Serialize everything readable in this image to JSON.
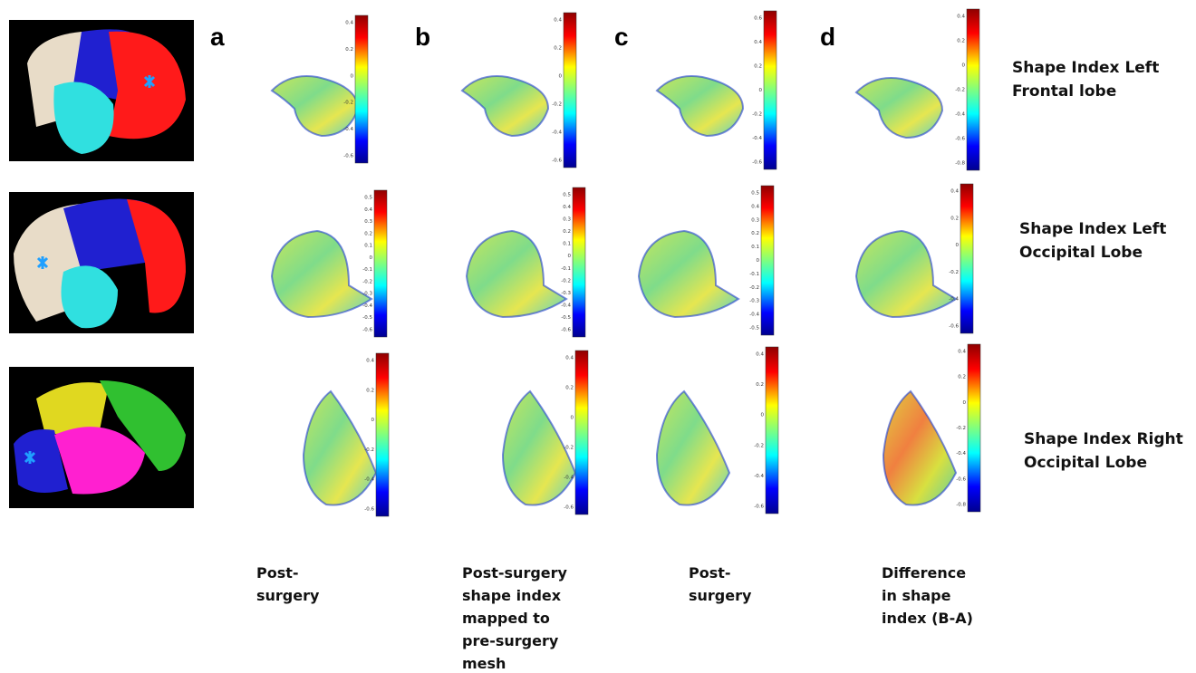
{
  "panel_letters": [
    "a",
    "b",
    "c",
    "d"
  ],
  "row_labels": [
    {
      "lines": [
        "Shape Index Left",
        "Frontal lobe"
      ]
    },
    {
      "lines": [
        "Shape Index Left",
        "Occipital Lobe"
      ]
    },
    {
      "lines": [
        "Shape Index Right",
        "Occipital Lobe"
      ]
    }
  ],
  "column_captions": [
    {
      "lines": [
        "Post-",
        "surgery"
      ]
    },
    {
      "lines": [
        "Post-surgery",
        "shape index",
        "mapped to",
        "pre-surgery",
        "mesh"
      ]
    },
    {
      "lines": [
        "Post-",
        "surgery"
      ]
    },
    {
      "lines": [
        "Difference",
        "in shape",
        "index (B-A)"
      ]
    }
  ],
  "colorbars": [
    [
      {
        "ticks": [
          "0.4",
          "0.2",
          "0",
          "-0.2",
          "-0.4",
          "-0.6"
        ]
      },
      {
        "ticks": [
          "0.4",
          "0.2",
          "0",
          "-0.2",
          "-0.4",
          "-0.6"
        ]
      },
      {
        "ticks": [
          "0.6",
          "0.4",
          "0.2",
          "0",
          "-0.2",
          "-0.4",
          "-0.6"
        ]
      },
      {
        "ticks": [
          "0.4",
          "0.2",
          "0",
          "-0.2",
          "-0.4",
          "-0.6",
          "-0.8"
        ]
      }
    ],
    [
      {
        "ticks": [
          "0.5",
          "0.4",
          "0.3",
          "0.2",
          "0.1",
          "0",
          "-0.1",
          "-0.2",
          "-0.3",
          "-0.4",
          "-0.5",
          "-0.6"
        ]
      },
      {
        "ticks": [
          "0.5",
          "0.4",
          "0.3",
          "0.2",
          "0.1",
          "0",
          "-0.1",
          "-0.2",
          "-0.3",
          "-0.4",
          "-0.5",
          "-0.6"
        ]
      },
      {
        "ticks": [
          "0.5",
          "0.4",
          "0.3",
          "0.2",
          "0.1",
          "0",
          "-0.1",
          "-0.2",
          "-0.3",
          "-0.4",
          "-0.5"
        ]
      },
      {
        "ticks": [
          "0.4",
          "0.2",
          "0",
          "-0.2",
          "-0.4",
          "-0.6"
        ]
      }
    ],
    [
      {
        "ticks": [
          "0.4",
          "0.2",
          "0",
          "-0.2",
          "-0.4",
          "-0.6"
        ]
      },
      {
        "ticks": [
          "0.4",
          "0.2",
          "0",
          "-0.2",
          "-0.4",
          "-0.6"
        ]
      },
      {
        "ticks": [
          "0.4",
          "0.2",
          "0",
          "-0.2",
          "-0.4",
          "-0.6"
        ]
      },
      {
        "ticks": [
          "0.4",
          "0.2",
          "0",
          "-0.2",
          "-0.4",
          "-0.6",
          "-0.8"
        ]
      }
    ]
  ]
}
